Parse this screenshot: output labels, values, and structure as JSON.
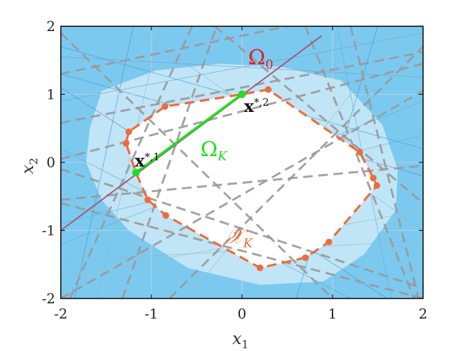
{
  "chart_data": {
    "type": "line",
    "xlim": [
      -2,
      2
    ],
    "ylim": [
      -2,
      2
    ],
    "xticks": [
      "-2",
      "-1",
      "0",
      "1",
      "2"
    ],
    "yticks": [
      "-2",
      "-1",
      "0",
      "1",
      "2"
    ],
    "xlabel": "x",
    "xlabel_sub": "1",
    "ylabel": "x",
    "ylabel_sub": "2",
    "grid": true,
    "colors": {
      "background": "#7cc9ef",
      "light_region": "#cdeaf8",
      "constraint_lines": "#9a9a9a",
      "polygon": "#ee6c3a",
      "segment": "#22dd22",
      "omega0_line": "#a05a7a",
      "omega0_label": "#e02020",
      "axes": "#000000"
    },
    "outer_region_vertices": [
      [
        -1.68,
        0.5
      ],
      [
        -1.55,
        1.05
      ],
      [
        -0.95,
        1.35
      ],
      [
        -0.25,
        1.45
      ],
      [
        0.45,
        1.4
      ],
      [
        1.1,
        1.2
      ],
      [
        1.55,
        0.55
      ],
      [
        1.72,
        -0.1
      ],
      [
        1.7,
        -0.7
      ],
      [
        1.35,
        -1.35
      ],
      [
        0.9,
        -1.75
      ],
      [
        0.2,
        -1.8
      ],
      [
        -0.6,
        -1.55
      ],
      [
        -1.25,
        -1.0
      ],
      [
        -1.55,
        -0.55
      ],
      [
        -1.72,
        0.0
      ]
    ],
    "polygon_XK": [
      [
        -1.28,
        0.28
      ],
      [
        -1.25,
        0.45
      ],
      [
        -0.85,
        0.82
      ],
      [
        0.0,
        1.0
      ],
      [
        0.29,
        1.07
      ],
      [
        1.3,
        0.15
      ],
      [
        1.45,
        -0.23
      ],
      [
        1.49,
        -0.34
      ],
      [
        0.96,
        -1.17
      ],
      [
        0.7,
        -1.4
      ],
      [
        0.2,
        -1.55
      ],
      [
        -0.84,
        -0.78
      ],
      [
        -1.04,
        -0.55
      ],
      [
        -1.17,
        -0.15
      ]
    ],
    "polygon_XK_markers": [
      [
        -1.28,
        0.28
      ],
      [
        -1.25,
        0.45
      ],
      [
        -0.85,
        0.82
      ],
      [
        0.29,
        1.07
      ],
      [
        1.3,
        0.15
      ],
      [
        1.45,
        -0.23
      ],
      [
        1.49,
        -0.34
      ],
      [
        0.96,
        -1.17
      ],
      [
        0.7,
        -1.4
      ],
      [
        0.2,
        -1.55
      ],
      [
        -0.84,
        -0.78
      ],
      [
        -1.04,
        -0.55
      ]
    ],
    "segment_OmegaK": {
      "from": [
        -1.17,
        -0.15
      ],
      "to": [
        0.0,
        1.0
      ]
    },
    "line_Omega0": {
      "x": [
        -2.0,
        0.88
      ],
      "y": [
        -1.0,
        1.86
      ]
    },
    "dashed_constraints": [
      {
        "x": [
          -2.0,
          2.0
        ],
        "y": [
          0.58,
          1.62
        ]
      },
      {
        "x": [
          -2.0,
          2.0
        ],
        "y": [
          0.05,
          1.45
        ]
      },
      {
        "x": [
          -1.32,
          -0.28
        ],
        "y": [
          -2.0,
          2.0
        ]
      },
      {
        "x": [
          -1.9,
          -0.55
        ],
        "y": [
          -2.0,
          2.0
        ]
      },
      {
        "x": [
          -2.0,
          2.0
        ],
        "y": [
          -2.0,
          1.05
        ]
      },
      {
        "x": [
          -2.0,
          1.0
        ],
        "y": [
          1.9,
          -2.0
        ]
      },
      {
        "x": [
          -2.0,
          2.0
        ],
        "y": [
          -0.1,
          -1.85
        ]
      },
      {
        "x": [
          -2.0,
          2.0
        ],
        "y": [
          -0.6,
          -2.0
        ]
      },
      {
        "x": [
          0.7,
          1.9
        ],
        "y": [
          2.0,
          -2.0
        ]
      },
      {
        "x": [
          1.2,
          1.95
        ],
        "y": [
          2.0,
          -2.0
        ]
      },
      {
        "x": [
          -0.3,
          2.0
        ],
        "y": [
          2.0,
          -0.6
        ]
      },
      {
        "x": [
          -0.8,
          2.0
        ],
        "y": [
          -2.0,
          1.7
        ]
      },
      {
        "x": [
          -2.0,
          2.0
        ],
        "y": [
          -0.55,
          -0.05
        ]
      },
      {
        "x": [
          -2.0,
          0.5
        ],
        "y": [
          1.3,
          2.0
        ]
      }
    ],
    "thin_lines": [
      {
        "x": [
          -2.0,
          2.0
        ],
        "y": [
          1.7,
          0.2
        ]
      },
      {
        "x": [
          -2.0,
          2.0
        ],
        "y": [
          -1.2,
          0.9
        ]
      },
      {
        "x": [
          -1.6,
          -0.9
        ],
        "y": [
          -2.0,
          2.0
        ]
      },
      {
        "x": [
          -2.0,
          2.0
        ],
        "y": [
          0.9,
          1.9
        ]
      },
      {
        "x": [
          -2.0,
          2.0
        ],
        "y": [
          -1.7,
          -0.7
        ]
      },
      {
        "x": [
          -2.0,
          1.6
        ],
        "y": [
          1.1,
          -2.0
        ]
      },
      {
        "x": [
          1.5,
          0.6
        ],
        "y": [
          2.0,
          -2.0
        ]
      },
      {
        "x": [
          -2.0,
          2.0
        ],
        "y": [
          -0.9,
          0.4
        ]
      },
      {
        "x": [
          -1.2,
          2.0
        ],
        "y": [
          2.0,
          -1.0
        ]
      },
      {
        "x": [
          -2.0,
          1.2
        ],
        "y": [
          0.2,
          -2.0
        ]
      },
      {
        "x": [
          -0.6,
          1.8
        ],
        "y": [
          -2.0,
          2.0
        ]
      },
      {
        "x": [
          -2.0,
          2.0
        ],
        "y": [
          1.3,
          -0.2
        ]
      },
      {
        "x": [
          -1.85,
          -1.2
        ],
        "y": [
          -2.0,
          2.0
        ]
      },
      {
        "x": [
          1.65,
          1.05
        ],
        "y": [
          -2.0,
          2.0
        ]
      },
      {
        "x": [
          -2.0,
          2.0
        ],
        "y": [
          -1.45,
          -1.15
        ]
      },
      {
        "x": [
          -2.0,
          2.0
        ],
        "y": [
          1.55,
          1.25
        ]
      }
    ],
    "labels": {
      "omega0": {
        "text": "Ω",
        "sub": "0"
      },
      "omegaK": {
        "text": "Ω",
        "sub": "K"
      },
      "xK": {
        "text": "𝒳",
        "sub": "K"
      },
      "xstar1": {
        "text": "x",
        "sup": "*,1"
      },
      "xstar2": {
        "text": "x",
        "sup": "*,2"
      }
    }
  }
}
